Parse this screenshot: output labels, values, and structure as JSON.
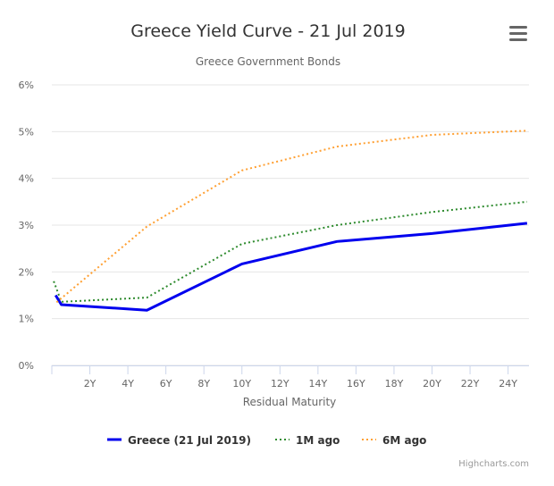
{
  "menu_icon": "hamburger-menu-icon",
  "credits": "Highcharts.com",
  "chart_data": {
    "type": "line",
    "title": "Greece Yield Curve - 21 Jul 2019",
    "subtitle": "Greece Government Bonds",
    "xlabel": "Residual Maturity",
    "ylabel": "",
    "xlim": [
      0,
      25.1
    ],
    "ylim": [
      0,
      6
    ],
    "grid": true,
    "legend_placement": "bottom",
    "x_ticks": [
      {
        "v": 2,
        "label": "2Y"
      },
      {
        "v": 4,
        "label": "4Y"
      },
      {
        "v": 6,
        "label": "6Y"
      },
      {
        "v": 8,
        "label": "8Y"
      },
      {
        "v": 10,
        "label": "10Y"
      },
      {
        "v": 12,
        "label": "12Y"
      },
      {
        "v": 14,
        "label": "14Y"
      },
      {
        "v": 16,
        "label": "16Y"
      },
      {
        "v": 18,
        "label": "18Y"
      },
      {
        "v": 20,
        "label": "20Y"
      },
      {
        "v": 22,
        "label": "22Y"
      },
      {
        "v": 24,
        "label": "24Y"
      }
    ],
    "y_ticks": [
      {
        "v": 0,
        "label": "0%"
      },
      {
        "v": 1,
        "label": "1%"
      },
      {
        "v": 2,
        "label": "2%"
      },
      {
        "v": 3,
        "label": "3%"
      },
      {
        "v": 4,
        "label": "4%"
      },
      {
        "v": 5,
        "label": "5%"
      },
      {
        "v": 6,
        "label": "6%"
      }
    ],
    "series": [
      {
        "name": "Greece (21 Jul 2019)",
        "color": "#0000ee",
        "style": "solid",
        "points": [
          [
            0.2,
            1.5
          ],
          [
            0.5,
            1.3
          ],
          [
            5,
            1.18
          ],
          [
            10,
            2.17
          ],
          [
            15,
            2.65
          ],
          [
            20,
            2.82
          ],
          [
            25,
            3.04
          ]
        ]
      },
      {
        "name": "1M ago",
        "color": "#2e8b2e",
        "style": "dotted",
        "points": [
          [
            0.1,
            1.8
          ],
          [
            0.5,
            1.36
          ],
          [
            5,
            1.45
          ],
          [
            10,
            2.6
          ],
          [
            15,
            3.0
          ],
          [
            20,
            3.28
          ],
          [
            25,
            3.5
          ]
        ]
      },
      {
        "name": "6M ago",
        "color": "#ffa033",
        "style": "dotted",
        "points": [
          [
            0.25,
            1.35
          ],
          [
            5,
            2.97
          ],
          [
            10,
            4.17
          ],
          [
            15,
            4.68
          ],
          [
            20,
            4.93
          ],
          [
            25,
            5.02
          ]
        ]
      }
    ]
  }
}
